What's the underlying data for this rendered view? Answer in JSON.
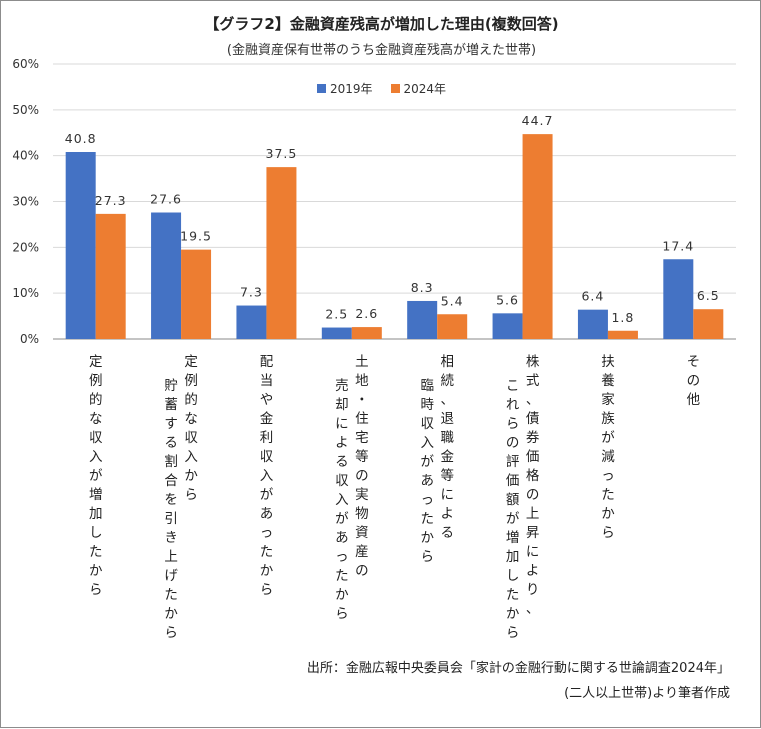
{
  "title": "【グラフ2】金融資産残高が増加した理由(複数回答)",
  "subtitle": "(金融資産保有世帯のうち金融資産残高が増えた世帯)",
  "source_line1": "出所：金融広報中央委員会「家計の金融行動に関する世論調査2024年」",
  "source_line2": "(二人以上世帯)より筆者作成",
  "chart_data": {
    "type": "bar",
    "ylim": [
      0,
      60
    ],
    "yticks": [
      0,
      10,
      20,
      30,
      40,
      50,
      60
    ],
    "ytick_labels": [
      "0%",
      "10%",
      "20%",
      "30%",
      "40%",
      "50%",
      "60%"
    ],
    "legend_position": "top-center",
    "grid": true,
    "categories": [
      "定例的な収入が増加したから",
      "定例的な収入から貯蓄する割合を引き上げたから",
      "配当や金利収入があったから",
      "土地・住宅等の実物資産の売却による収入があったから",
      "相続、退職金等による臨時収入があったから",
      "株式、債券価格の上昇により、これらの評価額が増加したから",
      "扶養家族が減ったから",
      "その他"
    ],
    "category_lines": [
      [
        "定例的な収入が増加したから"
      ],
      [
        "定例的な収入から",
        "貯蓄する割合を引き上げたから"
      ],
      [
        "配当や金利収入があったから"
      ],
      [
        "土地・住宅等の実物資産の",
        "売却による収入があったから"
      ],
      [
        "相続、退職金等による",
        "臨時収入があったから"
      ],
      [
        "株式、債券価格の上昇により、",
        "これらの評価額が増加したから"
      ],
      [
        "扶養家族が減ったから"
      ],
      [
        "その他"
      ]
    ],
    "series": [
      {
        "name": "2019年",
        "color": "#4472c4",
        "values": [
          40.8,
          27.6,
          7.3,
          2.5,
          8.3,
          5.6,
          6.4,
          17.4
        ],
        "labels": [
          "40.8",
          "27.6",
          "7.3",
          "2.5",
          "8.3",
          "5.6",
          "6.4",
          "17.4"
        ]
      },
      {
        "name": "2024年",
        "color": "#ed7d31",
        "values": [
          27.3,
          19.5,
          37.5,
          2.6,
          5.4,
          44.7,
          1.8,
          6.5
        ],
        "labels": [
          "27.3",
          "19.5",
          "37.5",
          "2.6",
          "5.4",
          "44.7",
          "1.8",
          "6.5"
        ]
      }
    ]
  }
}
